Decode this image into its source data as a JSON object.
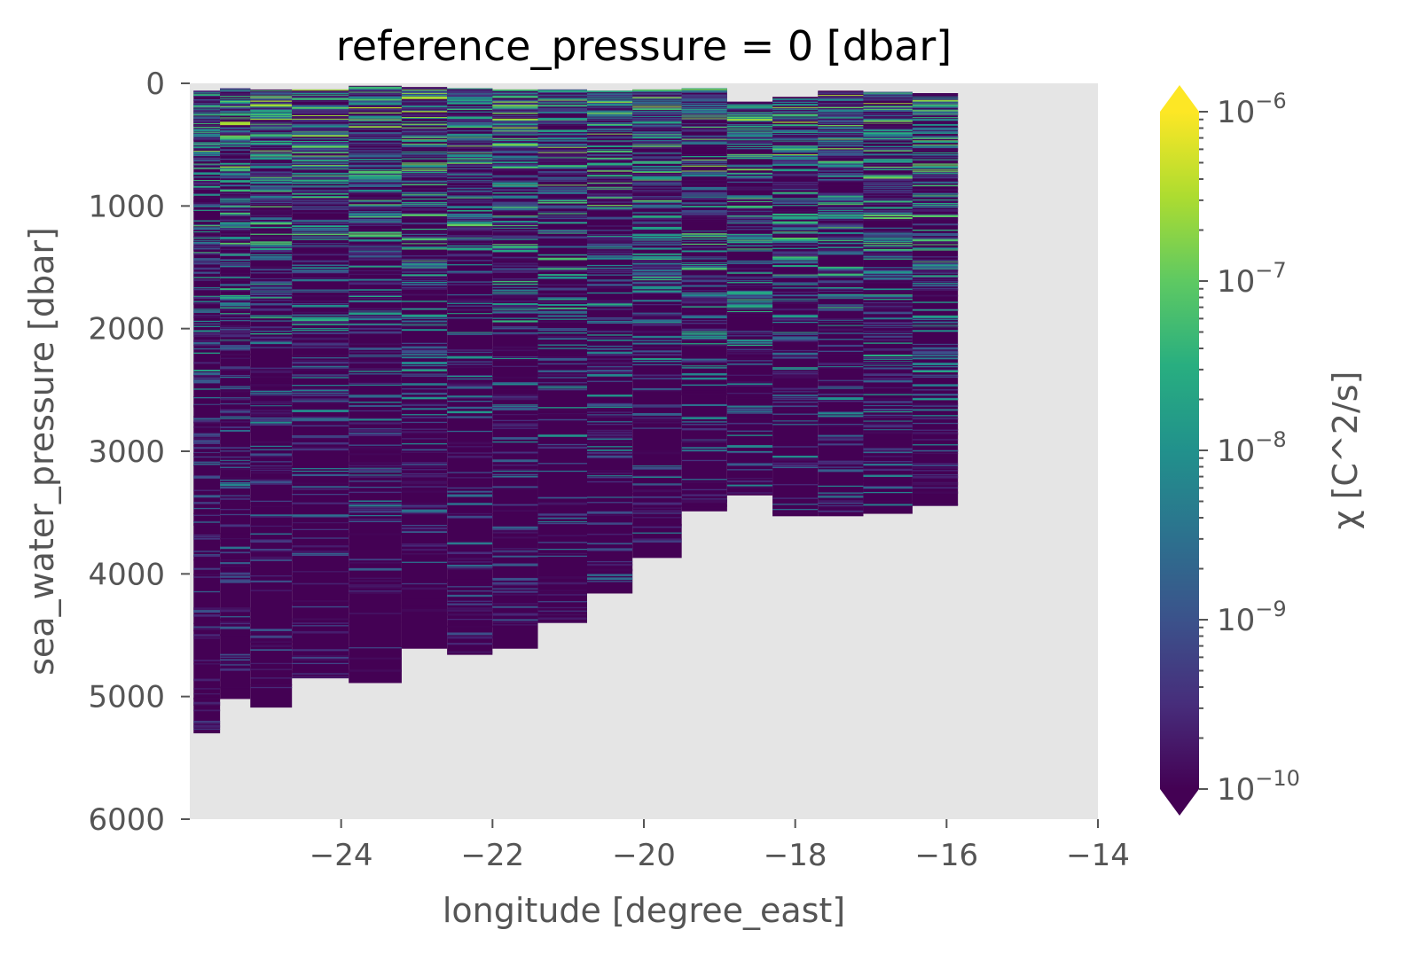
{
  "chart_data": {
    "type": "heatmap",
    "title": "reference_pressure = 0 [dbar]",
    "xlabel": "longitude [degree_east]",
    "ylabel": "sea_water_pressure [dbar]",
    "xlim": [
      -26,
      -14
    ],
    "ylim": [
      6000,
      0
    ],
    "xticks": [
      -24,
      -22,
      -20,
      -18,
      -16,
      -14
    ],
    "xtick_labels": [
      "−24",
      "−22",
      "−20",
      "−18",
      "−16",
      "−14"
    ],
    "yticks": [
      0,
      1000,
      2000,
      3000,
      4000,
      5000,
      6000
    ],
    "ytick_labels": [
      "0",
      "1000",
      "2000",
      "3000",
      "4000",
      "5000",
      "6000"
    ],
    "background_color": "#e5e5e5",
    "grid": false,
    "colorbar": {
      "label": "χ [C^2/s]",
      "scale": "log",
      "range": [
        1e-10,
        1e-06
      ],
      "extend": "both",
      "colormap": "viridis",
      "ticks": [
        {
          "base": "10",
          "exp": "−6"
        },
        {
          "base": "10",
          "exp": "−7"
        },
        {
          "base": "10",
          "exp": "−8"
        },
        {
          "base": "10",
          "exp": "−9"
        },
        {
          "base": "10",
          "exp": "−10"
        }
      ]
    },
    "profiles": [
      {
        "lon_start": -25.95,
        "lon_end": -25.6,
        "p_top": 60,
        "p_bottom": 5300
      },
      {
        "lon_start": -25.6,
        "lon_end": -25.2,
        "p_top": 40,
        "p_bottom": 5020
      },
      {
        "lon_start": -25.2,
        "lon_end": -24.65,
        "p_top": 50,
        "p_bottom": 5090
      },
      {
        "lon_start": -24.65,
        "lon_end": -23.9,
        "p_top": 50,
        "p_bottom": 4840
      },
      {
        "lon_start": -23.9,
        "lon_end": -23.2,
        "p_top": 20,
        "p_bottom": 4890
      },
      {
        "lon_start": -23.2,
        "lon_end": -22.6,
        "p_top": 30,
        "p_bottom": 4610
      },
      {
        "lon_start": -22.6,
        "lon_end": -22.0,
        "p_top": 40,
        "p_bottom": 4660
      },
      {
        "lon_start": -22.0,
        "lon_end": -21.4,
        "p_top": 50,
        "p_bottom": 4610
      },
      {
        "lon_start": -21.4,
        "lon_end": -20.75,
        "p_top": 50,
        "p_bottom": 4400
      },
      {
        "lon_start": -20.75,
        "lon_end": -20.15,
        "p_top": 60,
        "p_bottom": 4160
      },
      {
        "lon_start": -20.15,
        "lon_end": -19.5,
        "p_top": 50,
        "p_bottom": 3870
      },
      {
        "lon_start": -19.5,
        "lon_end": -18.9,
        "p_top": 40,
        "p_bottom": 3490
      },
      {
        "lon_start": -18.9,
        "lon_end": -18.3,
        "p_top": 150,
        "p_bottom": 3360
      },
      {
        "lon_start": -18.3,
        "lon_end": -17.7,
        "p_top": 110,
        "p_bottom": 3530
      },
      {
        "lon_start": -17.7,
        "lon_end": -17.1,
        "p_top": 60,
        "p_bottom": 3530
      },
      {
        "lon_start": -17.1,
        "lon_end": -16.45,
        "p_top": 70,
        "p_bottom": 3510
      },
      {
        "lon_start": -16.45,
        "lon_end": -15.85,
        "p_top": 80,
        "p_bottom": 3440
      }
    ]
  }
}
